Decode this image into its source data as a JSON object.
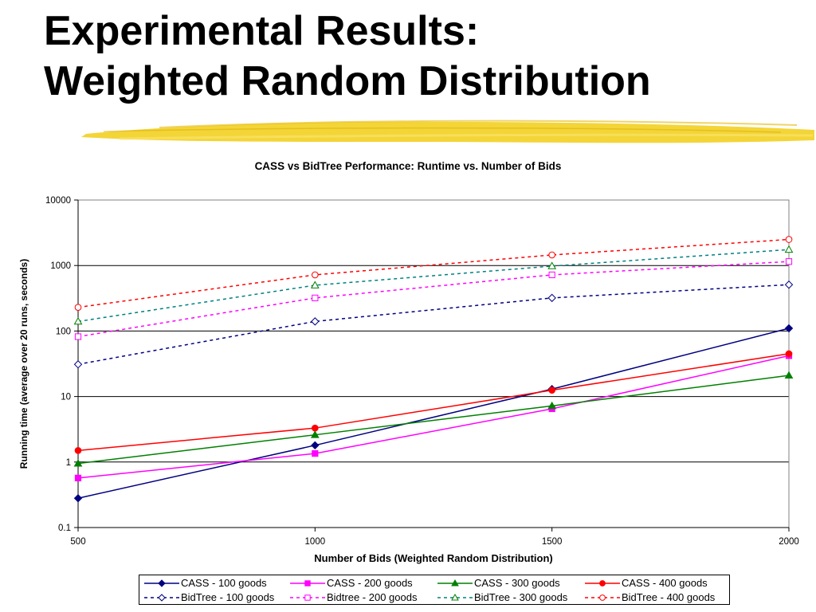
{
  "slide": {
    "title_line1": "Experimental Results:",
    "title_line2": "Weighted Random Distribution",
    "highlight_color": "#F2D022"
  },
  "chart_data": {
    "type": "line",
    "title": "CASS vs BidTree Performance:  Runtime vs. Number of Bids",
    "xlabel": "Number of Bids (Weighted Random Distribution)",
    "ylabel": "Running time (average over 20 runs, seconds)",
    "x": [
      500,
      1000,
      1500,
      2000
    ],
    "xlim": [
      500,
      2000
    ],
    "ylim": [
      0.1,
      10000
    ],
    "yscale": "log",
    "x_ticks": [
      "500",
      "1000",
      "1500",
      "2000"
    ],
    "y_ticks": [
      "0.1",
      "1",
      "10",
      "100",
      "1000",
      "10000"
    ],
    "grid": "horizontal",
    "legend_position": "bottom",
    "series": [
      {
        "name": "CASS - 100 goods",
        "values": [
          0.28,
          1.8,
          13,
          110
        ],
        "color": "#000080",
        "dash": "solid",
        "marker": "diamond",
        "filled": true
      },
      {
        "name": "CASS - 200 goods",
        "values": [
          0.57,
          1.35,
          6.5,
          42
        ],
        "color": "#FF00FF",
        "dash": "solid",
        "marker": "square",
        "filled": true
      },
      {
        "name": "CASS - 300 goods",
        "values": [
          0.95,
          2.6,
          7.2,
          21
        ],
        "color": "#008000",
        "dash": "solid",
        "marker": "triangle",
        "filled": true
      },
      {
        "name": "CASS - 400 goods",
        "values": [
          1.5,
          3.3,
          12.5,
          45
        ],
        "color": "#FF0000",
        "dash": "solid",
        "marker": "circle",
        "filled": true
      },
      {
        "name": "BidTree - 100 goods",
        "values": [
          31,
          140,
          320,
          510
        ],
        "color": "#000080",
        "dash": "dashed",
        "marker": "diamond",
        "filled": false
      },
      {
        "name": "Bidtree - 200 goods",
        "values": [
          82,
          320,
          720,
          1150
        ],
        "color": "#FF00FF",
        "dash": "dashed",
        "marker": "square",
        "filled": false
      },
      {
        "name": "BidTree - 300 goods",
        "values": [
          140,
          500,
          980,
          1750
        ],
        "color": "#008080",
        "marker_color": "#008000",
        "dash": "dashed",
        "marker": "triangle",
        "filled": false
      },
      {
        "name": "BidTree - 400 goods",
        "values": [
          230,
          720,
          1450,
          2500
        ],
        "color": "#FF0000",
        "dash": "dashed",
        "marker": "circle",
        "filled": false
      }
    ]
  }
}
